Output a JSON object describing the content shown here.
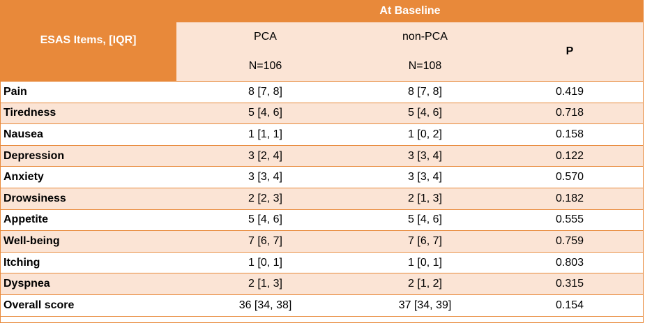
{
  "table": {
    "header": {
      "item_col": "ESAS Items, [IQR]",
      "group_title": "At Baseline",
      "pca_label": "PCA",
      "pca_n": "N=106",
      "nonpca_label": "non-PCA",
      "nonpca_n": "N=108",
      "p_label": "P"
    },
    "rows": [
      {
        "item": "Pain",
        "pca": "8 [7, 8]",
        "nonpca": "8 [7, 8]",
        "p": "0.419"
      },
      {
        "item": "Tiredness",
        "pca": "5 [4, 6]",
        "nonpca": "5 [4, 6]",
        "p": "0.718"
      },
      {
        "item": "Nausea",
        "pca": "1 [1, 1]",
        "nonpca": "1 [0, 2]",
        "p": "0.158"
      },
      {
        "item": "Depression",
        "pca": "3 [2, 4]",
        "nonpca": "3 [3, 4]",
        "p": "0.122"
      },
      {
        "item": "Anxiety",
        "pca": "3 [3, 4]",
        "nonpca": "3 [3, 4]",
        "p": "0.570"
      },
      {
        "item": "Drowsiness",
        "pca": "2 [2, 3]",
        "nonpca": "2 [1, 3]",
        "p": "0.182"
      },
      {
        "item": "Appetite",
        "pca": "5 [4, 6]",
        "nonpca": "5 [4, 6]",
        "p": "0.555"
      },
      {
        "item": "Well-being",
        "pca": "7 [6, 7]",
        "nonpca": "7 [6, 7]",
        "p": "0.759"
      },
      {
        "item": "Itching",
        "pca": "1 [0, 1]",
        "nonpca": "1 [0, 1]",
        "p": "0.803"
      },
      {
        "item": "Dyspnea",
        "pca": "2 [1, 3]",
        "nonpca": "2 [1, 2]",
        "p": "0.315"
      },
      {
        "item": "Overall score",
        "pca": "36 [34, 38]",
        "nonpca": "37 [34, 39]",
        "p": "0.154"
      }
    ]
  }
}
